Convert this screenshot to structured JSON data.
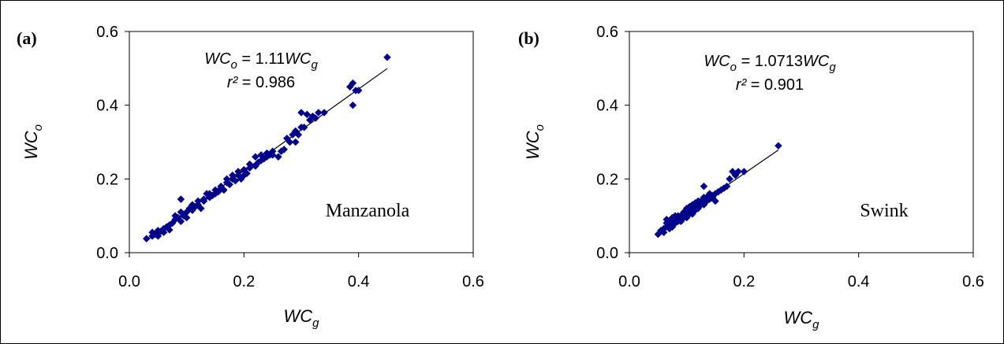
{
  "chart_data": [
    {
      "type": "scatter",
      "panel_label": "(a)",
      "site": "Manzanola",
      "xlabel": {
        "base": "WC",
        "sub": "g"
      },
      "ylabel": {
        "base": "WC",
        "sub": "o"
      },
      "xlim": [
        0.0,
        0.6
      ],
      "ylim": [
        0.0,
        0.6
      ],
      "xticks": [
        "0.0",
        "0.2",
        "0.4",
        "0.6"
      ],
      "yticks": [
        "0.0",
        "0.2",
        "0.4",
        "0.6"
      ],
      "grid": false,
      "marker_color": "#00008B",
      "equation": {
        "lhs": "WC",
        "lhs_sub": "o",
        "mid": " = 1.11",
        "rhs": "WC",
        "rhs_sub": "g"
      },
      "r2": {
        "label": "r²",
        "value": " = 0.986"
      },
      "fit": {
        "slope": 1.11,
        "x_range": [
          0.03,
          0.45
        ]
      },
      "points": [
        [
          0.03,
          0.038
        ],
        [
          0.04,
          0.045
        ],
        [
          0.04,
          0.055
        ],
        [
          0.045,
          0.05
        ],
        [
          0.05,
          0.06
        ],
        [
          0.05,
          0.045
        ],
        [
          0.055,
          0.058
        ],
        [
          0.06,
          0.065
        ],
        [
          0.06,
          0.055
        ],
        [
          0.065,
          0.07
        ],
        [
          0.07,
          0.075
        ],
        [
          0.07,
          0.062
        ],
        [
          0.075,
          0.08
        ],
        [
          0.08,
          0.09
        ],
        [
          0.08,
          0.1
        ],
        [
          0.085,
          0.095
        ],
        [
          0.09,
          0.085
        ],
        [
          0.09,
          0.11
        ],
        [
          0.09,
          0.145
        ],
        [
          0.095,
          0.1
        ],
        [
          0.1,
          0.11
        ],
        [
          0.1,
          0.095
        ],
        [
          0.105,
          0.12
        ],
        [
          0.11,
          0.115
        ],
        [
          0.11,
          0.13
        ],
        [
          0.115,
          0.125
        ],
        [
          0.12,
          0.13
        ],
        [
          0.12,
          0.14
        ],
        [
          0.125,
          0.12
        ],
        [
          0.13,
          0.145
        ],
        [
          0.13,
          0.14
        ],
        [
          0.135,
          0.16
        ],
        [
          0.14,
          0.15
        ],
        [
          0.14,
          0.16
        ],
        [
          0.145,
          0.155
        ],
        [
          0.15,
          0.16
        ],
        [
          0.15,
          0.17
        ],
        [
          0.155,
          0.165
        ],
        [
          0.16,
          0.175
        ],
        [
          0.16,
          0.18
        ],
        [
          0.165,
          0.17
        ],
        [
          0.17,
          0.19
        ],
        [
          0.17,
          0.2
        ],
        [
          0.175,
          0.185
        ],
        [
          0.18,
          0.2
        ],
        [
          0.18,
          0.21
        ],
        [
          0.185,
          0.195
        ],
        [
          0.19,
          0.21
        ],
        [
          0.19,
          0.22
        ],
        [
          0.195,
          0.2
        ],
        [
          0.2,
          0.21
        ],
        [
          0.2,
          0.225
        ],
        [
          0.205,
          0.215
        ],
        [
          0.21,
          0.23
        ],
        [
          0.21,
          0.24
        ],
        [
          0.22,
          0.235
        ],
        [
          0.22,
          0.26
        ],
        [
          0.225,
          0.245
        ],
        [
          0.23,
          0.25
        ],
        [
          0.23,
          0.265
        ],
        [
          0.235,
          0.255
        ],
        [
          0.24,
          0.26
        ],
        [
          0.24,
          0.27
        ],
        [
          0.245,
          0.265
        ],
        [
          0.25,
          0.275
        ],
        [
          0.25,
          0.265
        ],
        [
          0.26,
          0.26
        ],
        [
          0.265,
          0.275
        ],
        [
          0.27,
          0.28
        ],
        [
          0.275,
          0.31
        ],
        [
          0.28,
          0.3
        ],
        [
          0.285,
          0.32
        ],
        [
          0.29,
          0.3
        ],
        [
          0.29,
          0.33
        ],
        [
          0.295,
          0.32
        ],
        [
          0.3,
          0.38
        ],
        [
          0.3,
          0.34
        ],
        [
          0.305,
          0.34
        ],
        [
          0.31,
          0.375
        ],
        [
          0.315,
          0.36
        ],
        [
          0.32,
          0.37
        ],
        [
          0.325,
          0.365
        ],
        [
          0.33,
          0.38
        ],
        [
          0.34,
          0.38
        ],
        [
          0.385,
          0.45
        ],
        [
          0.39,
          0.4
        ],
        [
          0.39,
          0.46
        ],
        [
          0.395,
          0.44
        ],
        [
          0.4,
          0.44
        ],
        [
          0.45,
          0.53
        ]
      ]
    },
    {
      "type": "scatter",
      "panel_label": "(b)",
      "site": "Swink",
      "xlabel": {
        "base": "WC",
        "sub": "g"
      },
      "ylabel": {
        "base": "WC",
        "sub": "o"
      },
      "xlim": [
        0.0,
        0.6
      ],
      "ylim": [
        0.0,
        0.6
      ],
      "xticks": [
        "0.0",
        "0.2",
        "0.4",
        "0.6"
      ],
      "yticks": [
        "0.0",
        "0.2",
        "0.4",
        "0.6"
      ],
      "grid": false,
      "marker_color": "#00008B",
      "equation": {
        "lhs": "WC",
        "lhs_sub": "o",
        "mid": " = 1.0713",
        "rhs": "WC",
        "rhs_sub": "g"
      },
      "r2": {
        "label": "r²",
        "value": " = 0.901"
      },
      "fit": {
        "slope": 1.0713,
        "x_range": [
          0.05,
          0.26
        ]
      },
      "points": [
        [
          0.05,
          0.05
        ],
        [
          0.055,
          0.06
        ],
        [
          0.06,
          0.065
        ],
        [
          0.06,
          0.055
        ],
        [
          0.065,
          0.07
        ],
        [
          0.065,
          0.08
        ],
        [
          0.07,
          0.075
        ],
        [
          0.07,
          0.065
        ],
        [
          0.075,
          0.085
        ],
        [
          0.075,
          0.07
        ],
        [
          0.08,
          0.09
        ],
        [
          0.08,
          0.08
        ],
        [
          0.085,
          0.095
        ],
        [
          0.085,
          0.085
        ],
        [
          0.09,
          0.1
        ],
        [
          0.09,
          0.09
        ],
        [
          0.095,
          0.105
        ],
        [
          0.095,
          0.095
        ],
        [
          0.1,
          0.11
        ],
        [
          0.1,
          0.1
        ],
        [
          0.1,
          0.12
        ],
        [
          0.105,
          0.115
        ],
        [
          0.105,
          0.105
        ],
        [
          0.11,
          0.12
        ],
        [
          0.11,
          0.11
        ],
        [
          0.11,
          0.13
        ],
        [
          0.115,
          0.125
        ],
        [
          0.115,
          0.115
        ],
        [
          0.12,
          0.13
        ],
        [
          0.12,
          0.12
        ],
        [
          0.12,
          0.14
        ],
        [
          0.125,
          0.13
        ],
        [
          0.125,
          0.135
        ],
        [
          0.13,
          0.14
        ],
        [
          0.13,
          0.13
        ],
        [
          0.135,
          0.145
        ],
        [
          0.135,
          0.14
        ],
        [
          0.14,
          0.15
        ],
        [
          0.14,
          0.145
        ],
        [
          0.145,
          0.155
        ],
        [
          0.145,
          0.15
        ],
        [
          0.15,
          0.16
        ],
        [
          0.15,
          0.14
        ],
        [
          0.155,
          0.165
        ],
        [
          0.16,
          0.17
        ],
        [
          0.165,
          0.175
        ],
        [
          0.17,
          0.18
        ],
        [
          0.175,
          0.2
        ],
        [
          0.18,
          0.22
        ],
        [
          0.185,
          0.21
        ],
        [
          0.19,
          0.22
        ],
        [
          0.2,
          0.22
        ],
        [
          0.065,
          0.09
        ],
        [
          0.08,
          0.1
        ],
        [
          0.09,
          0.085
        ],
        [
          0.1,
          0.095
        ],
        [
          0.11,
          0.105
        ],
        [
          0.12,
          0.135
        ],
        [
          0.13,
          0.15
        ],
        [
          0.14,
          0.16
        ],
        [
          0.07,
          0.085
        ],
        [
          0.075,
          0.095
        ],
        [
          0.085,
          0.1
        ],
        [
          0.095,
          0.11
        ],
        [
          0.105,
          0.125
        ],
        [
          0.115,
          0.135
        ],
        [
          0.125,
          0.14
        ],
        [
          0.135,
          0.15
        ],
        [
          0.13,
          0.18
        ],
        [
          0.26,
          0.29
        ]
      ]
    }
  ]
}
